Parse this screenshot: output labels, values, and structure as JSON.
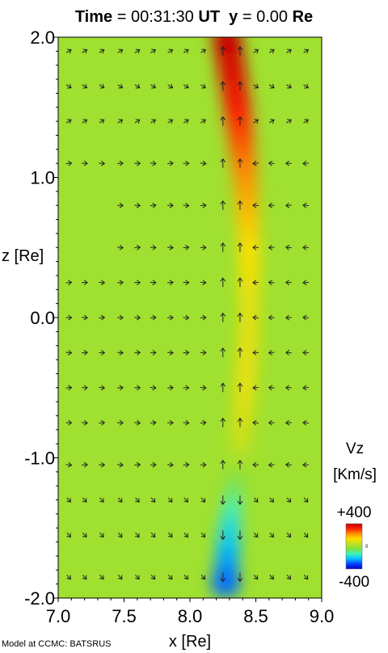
{
  "title": {
    "time_label": "Time",
    "time_value": "= 00:31:30",
    "time_unit": "UT",
    "y_label": "y",
    "y_value": "= 0.00",
    "y_unit": "Re"
  },
  "credit": "Model at CCMC: BATSRUS",
  "colorbar": {
    "title_line1": "Vz",
    "title_line2": "[Km/s]",
    "max_label": "+400",
    "min_label": "-400",
    "zero_mark": "0",
    "colors": [
      "#0000c0",
      "#0040ff",
      "#00c0ff",
      "#40f0c0",
      "#80e040",
      "#c0e020",
      "#ffe000",
      "#ff9000",
      "#ff2000",
      "#c00000"
    ]
  },
  "chart_data": {
    "type": "heatmap",
    "title": "Time = 00:31:30 UT  y = 0.00 Re",
    "xlabel": "x [Re]",
    "ylabel": "z [Re]",
    "xlim": [
      7.0,
      9.0
    ],
    "ylim": [
      -2.0,
      2.0
    ],
    "x_ticks": [
      7.0,
      7.5,
      8.0,
      8.5,
      9.0
    ],
    "x_tick_labels": [
      "7.0",
      "7.5",
      "8.0",
      "8.5",
      "9.0"
    ],
    "y_ticks": [
      -2.0,
      -1.0,
      0.0,
      1.0,
      2.0
    ],
    "y_tick_labels": [
      "-2.0",
      "-1.0",
      "0.0",
      "1.0",
      "2.0"
    ],
    "variable": "Vz",
    "units": "Km/s",
    "color_range": [
      -400,
      400
    ],
    "background_value": 0,
    "features": [
      {
        "z": 2.0,
        "x": 8.28,
        "vz": 400
      },
      {
        "z": 1.5,
        "x": 8.36,
        "vz": 330
      },
      {
        "z": 1.0,
        "x": 8.42,
        "vz": 230
      },
      {
        "z": 0.5,
        "x": 8.45,
        "vz": 140
      },
      {
        "z": 0.0,
        "x": 8.45,
        "vz": 100
      },
      {
        "z": -0.5,
        "x": 8.42,
        "vz": 110
      },
      {
        "z": -0.9,
        "x": 8.38,
        "vz": 70
      },
      {
        "z": -1.5,
        "x": 8.3,
        "vz": -170
      },
      {
        "z": -1.9,
        "x": 8.27,
        "vz": -280
      }
    ],
    "vector_rows_z": [
      1.9,
      1.65,
      1.4,
      1.1,
      0.8,
      0.5,
      0.25,
      0.0,
      -0.25,
      -0.5,
      -0.75,
      -1.05,
      -1.3,
      -1.55,
      -1.85
    ],
    "vector_cols_x": [
      7.08,
      7.2,
      7.33,
      7.47,
      7.6,
      7.72,
      7.85,
      7.97,
      8.1,
      8.25,
      8.38,
      8.5,
      8.62,
      8.75,
      8.88
    ]
  }
}
